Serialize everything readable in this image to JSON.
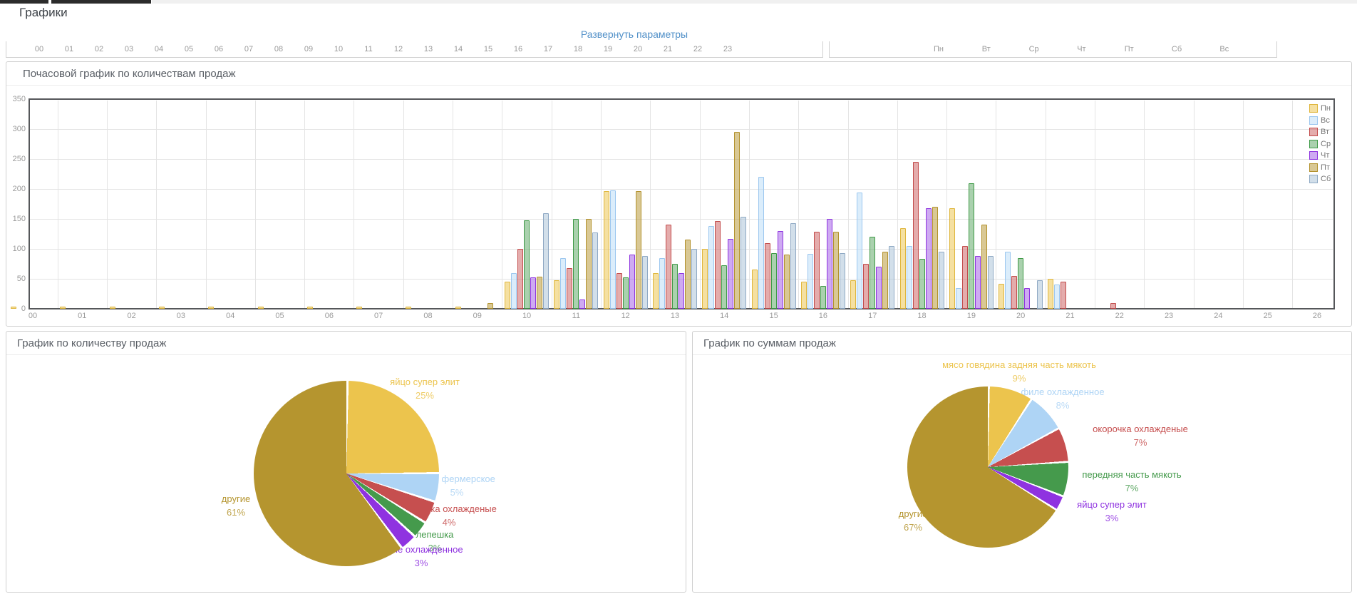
{
  "page": {
    "title": "Графики",
    "expand_link": "Развернуть параметры"
  },
  "top_axes": {
    "hours": [
      "00",
      "01",
      "02",
      "03",
      "04",
      "05",
      "06",
      "07",
      "08",
      "09",
      "10",
      "11",
      "12",
      "13",
      "14",
      "15",
      "16",
      "17",
      "18",
      "19",
      "20",
      "21",
      "22",
      "23"
    ],
    "days": [
      "Пн",
      "Вт",
      "Ср",
      "Чт",
      "Пт",
      "Сб",
      "Вс"
    ]
  },
  "chart_data": [
    {
      "type": "bar",
      "title": "Почасовой график по количествам продаж",
      "xlabel": "",
      "ylabel": "",
      "ylim": [
        0,
        350
      ],
      "yticks": [
        0,
        50,
        100,
        150,
        200,
        250,
        300,
        350
      ],
      "grid": true,
      "legend_position": "top-right",
      "categories": [
        "00",
        "01",
        "02",
        "03",
        "04",
        "05",
        "06",
        "07",
        "08",
        "09",
        "10",
        "11",
        "12",
        "13",
        "14",
        "15",
        "16",
        "17",
        "18",
        "19",
        "20",
        "21",
        "22",
        "23",
        "24",
        "25",
        "26"
      ],
      "series": [
        {
          "name": "Пн",
          "color": "#dfb63c",
          "fill": "rgba(236,198,84,0.55)",
          "values": [
            3,
            3,
            3,
            3,
            3,
            3,
            3,
            3,
            3,
            3,
            45,
            48,
            197,
            60,
            100,
            65,
            45,
            48,
            135,
            168,
            42,
            50,
            0,
            0,
            0,
            0,
            0
          ]
        },
        {
          "name": "Вс",
          "color": "#9cc7ef",
          "fill": "rgba(183,219,248,0.5)",
          "values": [
            0,
            0,
            0,
            0,
            0,
            0,
            0,
            0,
            0,
            0,
            60,
            85,
            198,
            85,
            138,
            220,
            92,
            194,
            105,
            35,
            95,
            40,
            0,
            0,
            0,
            0,
            0
          ]
        },
        {
          "name": "Вт",
          "color": "#c24b4b",
          "fill": "rgba(201,90,90,0.5)",
          "values": [
            0,
            0,
            0,
            0,
            0,
            0,
            0,
            0,
            0,
            0,
            100,
            68,
            60,
            140,
            147,
            110,
            128,
            75,
            245,
            105,
            55,
            45,
            10,
            0,
            0,
            0,
            0
          ]
        },
        {
          "name": "Ср",
          "color": "#3f9a47",
          "fill": "rgba(86,164,94,0.5)",
          "values": [
            0,
            0,
            0,
            0,
            0,
            0,
            0,
            0,
            0,
            0,
            148,
            150,
            52,
            75,
            73,
            93,
            38,
            120,
            83,
            210,
            85,
            0,
            0,
            0,
            0,
            0,
            0
          ]
        },
        {
          "name": "Чт",
          "color": "#8e33df",
          "fill": "rgba(158,85,230,0.5)",
          "values": [
            0,
            0,
            0,
            0,
            0,
            0,
            0,
            0,
            0,
            0,
            52,
            16,
            90,
            60,
            117,
            130,
            150,
            70,
            168,
            88,
            35,
            0,
            0,
            0,
            0,
            0,
            0
          ]
        },
        {
          "name": "Пт",
          "color": "#b3922d",
          "fill": "rgba(185,155,60,0.55)",
          "values": [
            0,
            0,
            0,
            0,
            0,
            0,
            0,
            0,
            0,
            10,
            53,
            150,
            197,
            115,
            295,
            90,
            128,
            95,
            170,
            140,
            0,
            0,
            0,
            0,
            0,
            0,
            0
          ]
        },
        {
          "name": "Сб",
          "color": "#8fa9c4",
          "fill": "rgba(173,196,216,0.55)",
          "values": [
            0,
            0,
            0,
            0,
            0,
            0,
            0,
            0,
            0,
            0,
            160,
            127,
            88,
            100,
            153,
            143,
            93,
            105,
            95,
            88,
            48,
            0,
            0,
            0,
            0,
            0,
            0
          ]
        }
      ]
    },
    {
      "type": "pie",
      "title": "График по количеству продаж",
      "slices": [
        {
          "label": "яйцо супер элит",
          "pct": 25,
          "color": "#ecc44d"
        },
        {
          "label": "яйцо фермерское",
          "pct": 5,
          "color": "#aed4f5"
        },
        {
          "label": "окорочка охлажденые",
          "pct": 4,
          "color": "#c64f4f"
        },
        {
          "label": "лепешка",
          "pct": 3,
          "color": "#459a4c"
        },
        {
          "label": "филе охлажденное",
          "pct": 3,
          "color": "#8f33e0"
        },
        {
          "label": "другие",
          "pct": 61,
          "color": "#b5952f"
        }
      ]
    },
    {
      "type": "pie",
      "title": "График по суммам продаж",
      "slices": [
        {
          "label": "мясо говядина задняя часть мякоть",
          "pct": 9,
          "color": "#ecc44d"
        },
        {
          "label": "филе охлажденное",
          "pct": 8,
          "color": "#aed4f5"
        },
        {
          "label": "окорочка охлажденые",
          "pct": 7,
          "color": "#c64f4f"
        },
        {
          "label": "передняя часть мякоть",
          "pct": 7,
          "color": "#459a4c"
        },
        {
          "label": "яйцо супер элит",
          "pct": 3,
          "color": "#8f33e0"
        },
        {
          "label": "другие",
          "pct": 67,
          "color": "#b5952f"
        }
      ]
    }
  ]
}
